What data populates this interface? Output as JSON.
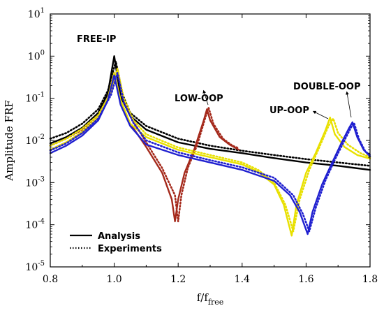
{
  "chart_data": {
    "type": "line",
    "xlabel": "f/f",
    "xlabel_sub": "free",
    "ylabel": "Amplitude FRF",
    "xlim": [
      0.8,
      1.8
    ],
    "ylim_log10": [
      -5,
      1
    ],
    "y_scale": "log",
    "x_ticks": [
      "0.8",
      "1.0",
      "1.2",
      "1.4",
      "1.6",
      "1.8"
    ],
    "y_ticks": [
      {
        "exp": 1,
        "base": "10",
        "sup": "1"
      },
      {
        "exp": 0,
        "base": "10",
        "sup": "0"
      },
      {
        "exp": -1,
        "base": "10",
        "sup": "-1"
      },
      {
        "exp": -2,
        "base": "10",
        "sup": "-2"
      },
      {
        "exp": -3,
        "base": "10",
        "sup": "-3"
      },
      {
        "exp": -4,
        "base": "10",
        "sup": "-4"
      },
      {
        "exp": -5,
        "base": "10",
        "sup": "-5"
      }
    ],
    "legend": {
      "position": "bottom-left",
      "entries": [
        {
          "label": "Analysis",
          "style": "solid"
        },
        {
          "label": "Experiments",
          "style": "dotted"
        }
      ]
    },
    "annotations": [
      {
        "text": "FREE-IP",
        "points_to": [
          1.0,
          1.0
        ]
      },
      {
        "text": "LOW-OOP",
        "points_to": [
          1.29,
          0.055
        ]
      },
      {
        "text": "UP-OOP",
        "points_to": [
          1.68,
          0.035
        ]
      },
      {
        "text": "DOUBLE-OOP",
        "points_to": [
          1.745,
          0.027
        ]
      }
    ],
    "series": [
      {
        "key": "free-ip-analysis",
        "color": "#000000",
        "style": "solid",
        "points": [
          [
            0.8,
            0.0085
          ],
          [
            0.85,
            0.012
          ],
          [
            0.9,
            0.02
          ],
          [
            0.95,
            0.045
          ],
          [
            0.98,
            0.13
          ],
          [
            1.0,
            1.0
          ],
          [
            1.02,
            0.11
          ],
          [
            1.05,
            0.038
          ],
          [
            1.1,
            0.018
          ],
          [
            1.2,
            0.009
          ],
          [
            1.3,
            0.0063
          ],
          [
            1.4,
            0.005
          ],
          [
            1.5,
            0.0038
          ],
          [
            1.6,
            0.003
          ],
          [
            1.7,
            0.0025
          ],
          [
            1.8,
            0.002
          ]
        ]
      },
      {
        "key": "free-ip-experiment",
        "color": "#000000",
        "style": "dotted",
        "points": [
          [
            0.8,
            0.011
          ],
          [
            0.85,
            0.015
          ],
          [
            0.9,
            0.025
          ],
          [
            0.95,
            0.055
          ],
          [
            0.98,
            0.15
          ],
          [
            1.005,
            0.75
          ],
          [
            1.025,
            0.13
          ],
          [
            1.05,
            0.045
          ],
          [
            1.1,
            0.022
          ],
          [
            1.2,
            0.011
          ],
          [
            1.3,
            0.0075
          ],
          [
            1.4,
            0.0057
          ],
          [
            1.5,
            0.0045
          ],
          [
            1.6,
            0.0036
          ],
          [
            1.7,
            0.003
          ],
          [
            1.8,
            0.0025
          ]
        ]
      },
      {
        "key": "low-oop-analysis",
        "color": "#A52A1C",
        "style": "solid",
        "points": [
          [
            0.8,
            0.006
          ],
          [
            0.85,
            0.009
          ],
          [
            0.9,
            0.015
          ],
          [
            0.95,
            0.035
          ],
          [
            0.98,
            0.1
          ],
          [
            1.0,
            0.4
          ],
          [
            1.02,
            0.08
          ],
          [
            1.05,
            0.025
          ],
          [
            1.1,
            0.007
          ],
          [
            1.15,
            0.0017
          ],
          [
            1.18,
            0.0004
          ],
          [
            1.19,
            0.00012
          ],
          [
            1.2,
            0.0004
          ],
          [
            1.22,
            0.0017
          ],
          [
            1.25,
            0.006
          ],
          [
            1.28,
            0.03
          ],
          [
            1.29,
            0.055
          ],
          [
            1.3,
            0.03
          ],
          [
            1.33,
            0.012
          ],
          [
            1.36,
            0.008
          ],
          [
            1.39,
            0.006
          ]
        ]
      },
      {
        "key": "low-oop-experiment",
        "color": "#A52A1C",
        "style": "dotted",
        "points": [
          [
            0.8,
            0.0075
          ],
          [
            0.85,
            0.011
          ],
          [
            0.9,
            0.018
          ],
          [
            0.95,
            0.04
          ],
          [
            0.99,
            0.14
          ],
          [
            1.01,
            0.5
          ],
          [
            1.03,
            0.09
          ],
          [
            1.06,
            0.028
          ],
          [
            1.1,
            0.009
          ],
          [
            1.15,
            0.0022
          ],
          [
            1.19,
            0.0005
          ],
          [
            1.2,
            0.00012
          ],
          [
            1.21,
            0.0005
          ],
          [
            1.23,
            0.0022
          ],
          [
            1.26,
            0.008
          ],
          [
            1.285,
            0.035
          ],
          [
            1.295,
            0.06
          ],
          [
            1.31,
            0.025
          ],
          [
            1.34,
            0.011
          ],
          [
            1.37,
            0.0075
          ],
          [
            1.39,
            0.0065
          ]
        ]
      },
      {
        "key": "up-oop-analysis",
        "color": "#E8E000",
        "style": "solid",
        "points": [
          [
            0.8,
            0.006
          ],
          [
            0.85,
            0.009
          ],
          [
            0.9,
            0.016
          ],
          [
            0.95,
            0.035
          ],
          [
            0.98,
            0.1
          ],
          [
            1.0,
            0.4
          ],
          [
            1.02,
            0.09
          ],
          [
            1.05,
            0.025
          ],
          [
            1.1,
            0.012
          ],
          [
            1.2,
            0.006
          ],
          [
            1.3,
            0.004
          ],
          [
            1.4,
            0.0027
          ],
          [
            1.45,
            0.0018
          ],
          [
            1.5,
            0.0009
          ],
          [
            1.53,
            0.0003
          ],
          [
            1.555,
            5.5e-05
          ],
          [
            1.57,
            0.0003
          ],
          [
            1.6,
            0.0017
          ],
          [
            1.63,
            0.005
          ],
          [
            1.66,
            0.017
          ],
          [
            1.675,
            0.035
          ],
          [
            1.69,
            0.014
          ],
          [
            1.72,
            0.007
          ],
          [
            1.76,
            0.0045
          ],
          [
            1.8,
            0.0037
          ]
        ]
      },
      {
        "key": "up-oop-experiment",
        "color": "#E8E000",
        "style": "dotted",
        "points": [
          [
            0.8,
            0.0075
          ],
          [
            0.85,
            0.011
          ],
          [
            0.9,
            0.019
          ],
          [
            0.95,
            0.04
          ],
          [
            0.99,
            0.14
          ],
          [
            1.01,
            0.5
          ],
          [
            1.03,
            0.1
          ],
          [
            1.06,
            0.03
          ],
          [
            1.1,
            0.014
          ],
          [
            1.2,
            0.0068
          ],
          [
            1.3,
            0.0045
          ],
          [
            1.4,
            0.003
          ],
          [
            1.45,
            0.002
          ],
          [
            1.5,
            0.001
          ],
          [
            1.535,
            0.0003
          ],
          [
            1.56,
            7e-05
          ],
          [
            1.58,
            0.0004
          ],
          [
            1.61,
            0.002
          ],
          [
            1.64,
            0.0065
          ],
          [
            1.67,
            0.022
          ],
          [
            1.685,
            0.033
          ],
          [
            1.7,
            0.015
          ],
          [
            1.73,
            0.008
          ],
          [
            1.77,
            0.005
          ],
          [
            1.8,
            0.004
          ]
        ]
      },
      {
        "key": "double-oop-analysis",
        "color": "#2020D0",
        "style": "solid",
        "points": [
          [
            0.8,
            0.005
          ],
          [
            0.85,
            0.0075
          ],
          [
            0.9,
            0.013
          ],
          [
            0.95,
            0.03
          ],
          [
            0.98,
            0.09
          ],
          [
            1.0,
            0.35
          ],
          [
            1.02,
            0.07
          ],
          [
            1.05,
            0.022
          ],
          [
            1.1,
            0.008
          ],
          [
            1.2,
            0.0045
          ],
          [
            1.3,
            0.003
          ],
          [
            1.4,
            0.002
          ],
          [
            1.5,
            0.0011
          ],
          [
            1.55,
            0.0005
          ],
          [
            1.58,
            0.0002
          ],
          [
            1.605,
            6e-05
          ],
          [
            1.62,
            0.0002
          ],
          [
            1.65,
            0.0009
          ],
          [
            1.68,
            0.0028
          ],
          [
            1.71,
            0.0085
          ],
          [
            1.735,
            0.02
          ],
          [
            1.745,
            0.027
          ],
          [
            1.76,
            0.012
          ],
          [
            1.78,
            0.006
          ],
          [
            1.8,
            0.0042
          ]
        ]
      },
      {
        "key": "double-oop-experiment",
        "color": "#2020D0",
        "style": "dotted",
        "points": [
          [
            0.8,
            0.0058
          ],
          [
            0.85,
            0.0085
          ],
          [
            0.9,
            0.015
          ],
          [
            0.95,
            0.033
          ],
          [
            0.99,
            0.12
          ],
          [
            1.01,
            0.4
          ],
          [
            1.03,
            0.08
          ],
          [
            1.06,
            0.026
          ],
          [
            1.1,
            0.01
          ],
          [
            1.2,
            0.0052
          ],
          [
            1.3,
            0.0034
          ],
          [
            1.4,
            0.0023
          ],
          [
            1.5,
            0.0013
          ],
          [
            1.56,
            0.0005
          ],
          [
            1.59,
            0.00018
          ],
          [
            1.61,
            7e-05
          ],
          [
            1.63,
            0.00025
          ],
          [
            1.66,
            0.0011
          ],
          [
            1.69,
            0.0035
          ],
          [
            1.72,
            0.01
          ],
          [
            1.74,
            0.02
          ],
          [
            1.75,
            0.026
          ],
          [
            1.765,
            0.011
          ],
          [
            1.785,
            0.0055
          ],
          [
            1.8,
            0.0045
          ]
        ]
      }
    ]
  }
}
